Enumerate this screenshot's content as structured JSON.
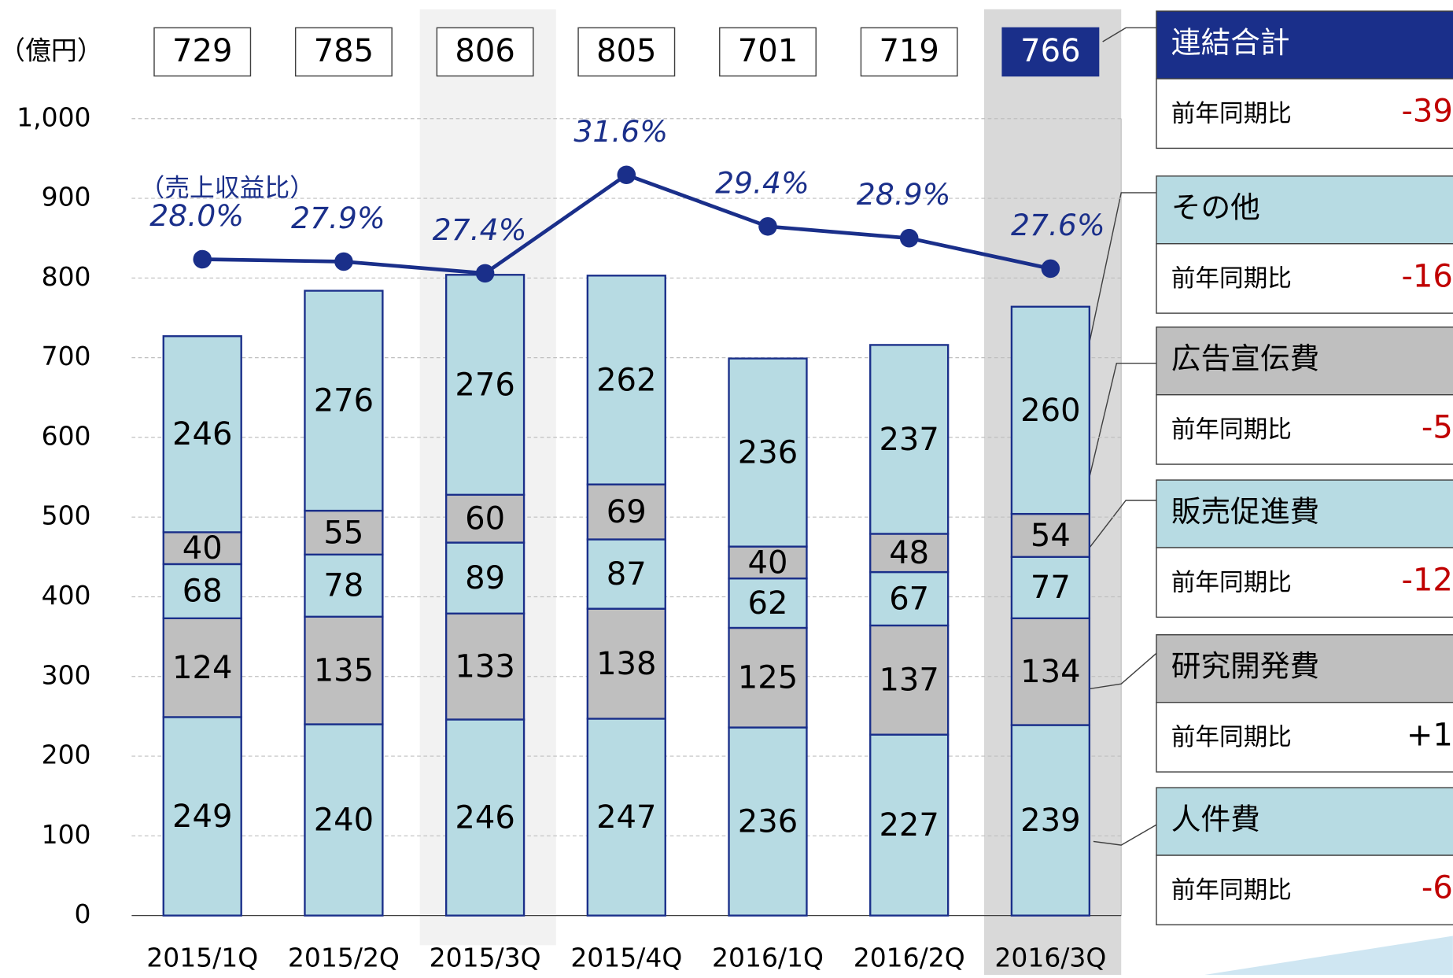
{
  "chart_data": {
    "type": "bar",
    "unit_label": "（億円）",
    "line_annotation": "（売上収益比）",
    "yoy_label": "前年同期比",
    "categories": [
      "2015/1Q",
      "2015/2Q",
      "2015/3Q",
      "2015/4Q",
      "2016/1Q",
      "2016/2Q",
      "2016/3Q"
    ],
    "total": {
      "name": "連結合計",
      "values": [
        729,
        785,
        806,
        805,
        701,
        719,
        766
      ],
      "yoy": "-39",
      "yoy_color": "#c00000",
      "color": "#1a2f8a"
    },
    "series": [
      {
        "name": "人件費",
        "color": "#b7dbe3",
        "values": [
          249,
          240,
          246,
          247,
          236,
          227,
          239
        ],
        "yoy": "-6",
        "yoy_color": "#c00000"
      },
      {
        "name": "研究開発費",
        "color": "#bfbfbf",
        "values": [
          124,
          135,
          133,
          138,
          125,
          137,
          134
        ],
        "yoy": "+1",
        "yoy_color": "#000000"
      },
      {
        "name": "販売促進費",
        "color": "#b7dbe3",
        "values": [
          68,
          78,
          89,
          87,
          62,
          67,
          77
        ],
        "yoy": "-12",
        "yoy_color": "#c00000"
      },
      {
        "name": "広告宣伝費",
        "color": "#bfbfbf",
        "values": [
          40,
          55,
          60,
          69,
          40,
          48,
          54
        ],
        "yoy": "-5",
        "yoy_color": "#c00000"
      },
      {
        "name": "その他",
        "color": "#b7dbe3",
        "values": [
          246,
          276,
          276,
          262,
          236,
          237,
          260
        ],
        "yoy": "-16",
        "yoy_color": "#c00000"
      }
    ],
    "line": {
      "type": "line",
      "axis": "y2",
      "color": "#1a2f8a",
      "values": [
        28.0,
        27.9,
        27.4,
        31.6,
        29.4,
        28.9,
        27.6
      ],
      "value_labels": [
        "28.0%",
        "27.9%",
        "27.4%",
        "31.6%",
        "29.4%",
        "28.9%",
        "27.6%"
      ]
    },
    "ylim": [
      0,
      1000
    ],
    "yticks": [
      0,
      100,
      200,
      300,
      400,
      500,
      600,
      700,
      800,
      900,
      {
        "value": 1000,
        "label": "1,000"
      }
    ],
    "y2lim": [
      0,
      34
    ],
    "grid": true
  }
}
